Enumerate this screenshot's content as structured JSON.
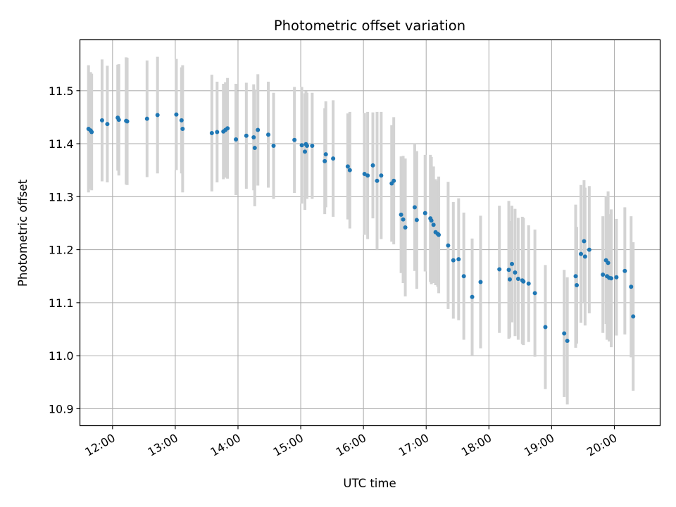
{
  "chart_data": {
    "type": "scatter",
    "title": "Photometric offset variation",
    "xlabel": "UTC time",
    "ylabel": "Photometric offset",
    "grid": true,
    "x_tick_labels": [
      "12:00",
      "13:00",
      "14:00",
      "15:00",
      "16:00",
      "17:00",
      "18:00",
      "19:00",
      "20:00"
    ],
    "x_ticks_hours": [
      12,
      13,
      14,
      15,
      16,
      17,
      18,
      19,
      20
    ],
    "y_ticks": [
      10.9,
      11.0,
      11.1,
      11.2,
      11.3,
      11.4,
      11.5
    ],
    "y_tick_labels": [
      "10.9",
      "11.0",
      "11.1",
      "11.2",
      "11.3",
      "11.4",
      "11.5"
    ],
    "xlim_hours": [
      11.48,
      20.73
    ],
    "ylim": [
      10.868,
      11.596
    ],
    "colors": {
      "points": "#1f77b4",
      "errorbars": "#d3d3d3",
      "grid": "#b0b0b0"
    },
    "series": [
      {
        "x_hours": [
          11.617,
          11.65,
          11.667,
          11.833,
          11.917,
          12.083,
          12.1,
          12.217,
          12.233,
          12.55,
          12.717,
          13.017,
          13.1,
          13.117,
          13.583,
          13.667,
          13.767,
          13.8,
          13.833,
          13.967,
          14.133,
          14.25,
          14.267,
          14.317,
          14.483,
          14.567,
          14.9,
          15.017,
          15.067,
          15.083,
          15.1,
          15.183,
          15.383,
          15.4,
          15.517,
          15.75,
          15.783,
          16.017,
          16.067,
          16.15,
          16.217,
          16.283,
          16.45,
          16.483,
          16.6,
          16.633,
          16.667,
          16.817,
          16.85,
          16.983,
          17.067,
          17.083,
          17.117,
          17.15,
          17.183,
          17.2,
          17.35,
          17.433,
          17.517,
          17.6,
          17.733,
          17.867,
          18.167,
          18.317,
          18.333,
          18.367,
          18.417,
          18.467,
          18.533,
          18.55,
          18.633,
          18.733,
          18.9,
          19.2,
          19.25,
          19.383,
          19.4,
          19.467,
          19.517,
          19.533,
          19.6,
          19.817,
          19.867,
          19.883,
          19.9,
          19.917,
          19.95,
          20.033,
          20.167,
          20.267,
          20.3
        ],
        "y": [
          11.428,
          11.425,
          11.422,
          11.444,
          11.437,
          11.449,
          11.445,
          11.443,
          11.442,
          11.447,
          11.454,
          11.455,
          11.444,
          11.428,
          11.42,
          11.422,
          11.423,
          11.426,
          11.429,
          11.408,
          11.415,
          11.412,
          11.392,
          11.426,
          11.417,
          11.396,
          11.407,
          11.397,
          11.385,
          11.399,
          11.396,
          11.396,
          11.367,
          11.38,
          11.372,
          11.357,
          11.35,
          11.343,
          11.34,
          11.359,
          11.33,
          11.34,
          11.325,
          11.33,
          11.266,
          11.257,
          11.242,
          11.28,
          11.256,
          11.269,
          11.259,
          11.255,
          11.247,
          11.233,
          11.23,
          11.228,
          11.208,
          11.18,
          11.182,
          11.15,
          11.111,
          11.139,
          11.163,
          11.162,
          11.144,
          11.173,
          11.157,
          11.145,
          11.142,
          11.14,
          11.136,
          11.118,
          11.054,
          11.042,
          11.028,
          11.15,
          11.133,
          11.192,
          11.216,
          11.187,
          11.2,
          11.153,
          11.18,
          11.15,
          11.175,
          11.147,
          11.146,
          11.148,
          11.16,
          11.13,
          11.074
        ],
        "yerr": [
          0.12,
          0.11,
          0.11,
          0.115,
          0.11,
          0.1,
          0.105,
          0.12,
          0.12,
          0.11,
          0.11,
          0.105,
          0.1,
          0.12,
          0.11,
          0.095,
          0.09,
          0.09,
          0.095,
          0.105,
          0.1,
          0.1,
          0.11,
          0.105,
          0.1,
          0.1,
          0.1,
          0.11,
          0.11,
          0.1,
          0.1,
          0.1,
          0.1,
          0.1,
          0.11,
          0.1,
          0.11,
          0.115,
          0.12,
          0.1,
          0.13,
          0.12,
          0.11,
          0.12,
          0.11,
          0.12,
          0.13,
          0.12,
          0.13,
          0.11,
          0.12,
          0.12,
          0.11,
          0.1,
          0.1,
          0.11,
          0.12,
          0.11,
          0.115,
          0.12,
          0.11,
          0.125,
          0.12,
          0.13,
          0.11,
          0.11,
          0.12,
          0.115,
          0.12,
          0.12,
          0.11,
          0.12,
          0.117,
          0.12,
          0.12,
          0.135,
          0.11,
          0.13,
          0.115,
          0.13,
          0.12,
          0.11,
          0.12,
          0.12,
          0.135,
          0.12,
          0.13,
          0.11,
          0.12,
          0.133,
          0.14
        ]
      }
    ]
  }
}
